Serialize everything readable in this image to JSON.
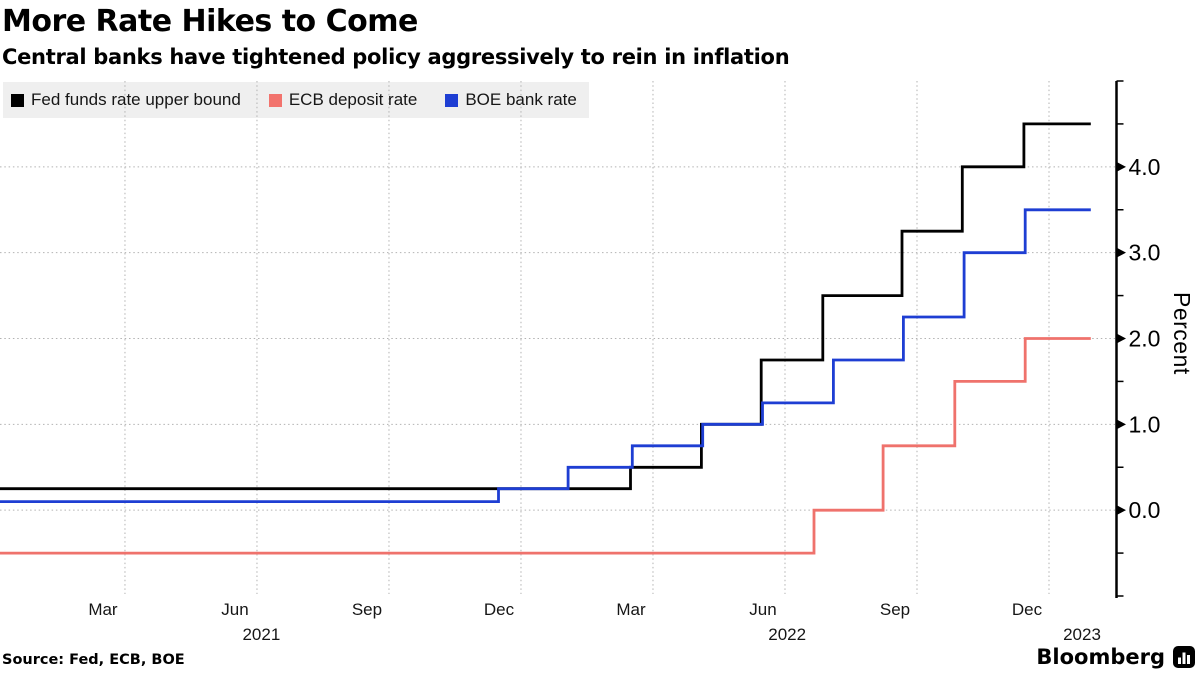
{
  "header": {
    "title": "More Rate Hikes to Come",
    "subtitle": "Central banks have tightened policy aggressively to rein in inflation"
  },
  "legend": {
    "items": [
      {
        "label": "Fed funds rate upper bound",
        "color": "#000000"
      },
      {
        "label": "ECB deposit rate",
        "color": "#f2736d"
      },
      {
        "label": "BOE bank rate",
        "color": "#1e3ed3"
      }
    ]
  },
  "footer": {
    "source": "Source: Fed, ECB, BOE",
    "brand": "Bloomberg"
  },
  "chart_data": {
    "type": "line",
    "subtype": "step-after",
    "title": "More Rate Hikes to Come",
    "ylabel": "Percent",
    "xlabel": "",
    "grid": true,
    "legend_position": "top-left",
    "ylim": [
      -1.0,
      5.0
    ],
    "x_unit": "months_since_jan_2021",
    "xlim": [
      0.16,
      25.5
    ],
    "y_major_ticks": [
      0,
      1,
      2,
      3,
      4
    ],
    "y_tick_decimals": 1,
    "y_minor_step": 0.5,
    "x_gridlines": [
      3,
      6,
      9,
      12,
      15,
      18,
      21,
      24
    ],
    "x_month_labels": [
      {
        "label": "Mar",
        "t": 2.5
      },
      {
        "label": "Jun",
        "t": 5.5
      },
      {
        "label": "Sep",
        "t": 8.5
      },
      {
        "label": "Dec",
        "t": 11.5
      },
      {
        "label": "Mar",
        "t": 14.5
      },
      {
        "label": "Jun",
        "t": 17.5
      },
      {
        "label": "Sep",
        "t": 20.5
      },
      {
        "label": "Dec",
        "t": 23.5
      }
    ],
    "x_year_labels": [
      {
        "label": "2021",
        "t": 6.1
      },
      {
        "label": "2022",
        "t": 18.05
      },
      {
        "label": "2023",
        "t": 24.75
      }
    ],
    "series": [
      {
        "name": "Fed funds rate upper bound",
        "color": "#000000",
        "points": [
          [
            0.16,
            0.25
          ],
          [
            14.49,
            0.5
          ],
          [
            16.1,
            1.0
          ],
          [
            17.46,
            1.75
          ],
          [
            18.86,
            2.5
          ],
          [
            20.66,
            3.25
          ],
          [
            22.03,
            4.0
          ],
          [
            23.43,
            4.5
          ],
          [
            24.95,
            4.5
          ]
        ]
      },
      {
        "name": "ECB deposit rate",
        "color": "#ef726c",
        "points": [
          [
            0.16,
            -0.5
          ],
          [
            18.66,
            0.0
          ],
          [
            20.23,
            0.75
          ],
          [
            21.86,
            1.5
          ],
          [
            23.46,
            2.0
          ],
          [
            24.95,
            2.0
          ]
        ]
      },
      {
        "name": "BOE bank rate",
        "color": "#1e3ed3",
        "points": [
          [
            0.16,
            0.1
          ],
          [
            11.49,
            0.25
          ],
          [
            13.07,
            0.5
          ],
          [
            14.53,
            0.75
          ],
          [
            16.13,
            1.0
          ],
          [
            17.49,
            1.25
          ],
          [
            19.1,
            1.75
          ],
          [
            20.69,
            2.25
          ],
          [
            22.07,
            3.0
          ],
          [
            23.46,
            3.5
          ],
          [
            24.95,
            3.5
          ]
        ]
      }
    ]
  }
}
